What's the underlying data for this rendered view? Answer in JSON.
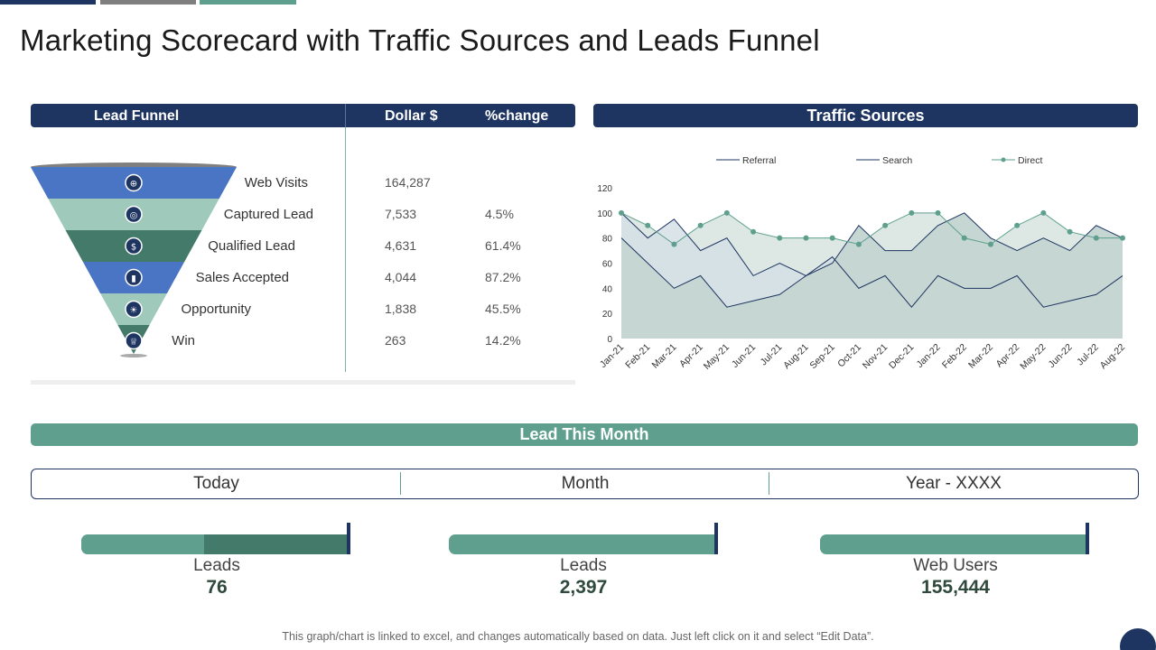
{
  "page_title": "Marketing Scorecard with Traffic Sources and Leads Funnel",
  "colors": {
    "navy": "#1e3461",
    "teal": "#5ea08d",
    "dark_teal": "#447a6a",
    "blue": "#4a74c4",
    "light_teal": "#9ec9bb"
  },
  "funnel": {
    "headers": {
      "stage": "Lead Funnel",
      "dollar": "Dollar $",
      "change": "%change"
    },
    "stages": [
      {
        "label": "Web Visits",
        "dollar": "164,287",
        "change": "",
        "icon": "globe-icon",
        "color": "#4a74c4"
      },
      {
        "label": "Captured Lead",
        "dollar": "7,533",
        "change": "4.5%",
        "icon": "target-icon",
        "color": "#9ec9bb"
      },
      {
        "label": "Qualified Lead",
        "dollar": "4,631",
        "change": "61.4%",
        "icon": "money-hand-icon",
        "color": "#447a6a"
      },
      {
        "label": "Sales Accepted",
        "dollar": "4,044",
        "change": "87.2%",
        "icon": "bar-chart-icon",
        "color": "#4a74c4"
      },
      {
        "label": "Opportunity",
        "dollar": "1,838",
        "change": "45.5%",
        "icon": "lightbulb-icon",
        "color": "#9ec9bb"
      },
      {
        "label": "Win",
        "dollar": "263",
        "change": "14.2%",
        "icon": "trophy-icon",
        "color": "#447a6a"
      }
    ]
  },
  "traffic": {
    "header": "Traffic Sources"
  },
  "chart_data": {
    "type": "area",
    "title": "Traffic Sources",
    "categories": [
      "Jan-21",
      "Feb-21",
      "Mar-21",
      "Apr-21",
      "May-21",
      "Jun-21",
      "Jul-21",
      "Aug-21",
      "Sep-21",
      "Oct-21",
      "Nov-21",
      "Dec-21",
      "Jan-22",
      "Feb-22",
      "Mar-22",
      "Apr-22",
      "May-22",
      "Jun-22",
      "Jul-22",
      "Aug-22"
    ],
    "ylim": [
      0,
      120
    ],
    "yticks": [
      0,
      20,
      40,
      60,
      80,
      100,
      120
    ],
    "legend_position": "top",
    "series": [
      {
        "name": "Referral",
        "values": [
          80,
          60,
          40,
          50,
          25,
          30,
          35,
          50,
          60,
          90,
          70,
          70,
          90,
          100,
          80,
          70,
          80,
          70,
          90,
          80
        ],
        "color": "#1e3461"
      },
      {
        "name": "Search",
        "values": [
          100,
          80,
          95,
          70,
          80,
          50,
          60,
          50,
          65,
          40,
          50,
          25,
          50,
          40,
          40,
          50,
          25,
          30,
          35,
          50
        ],
        "color": "#1e3461"
      },
      {
        "name": "Direct",
        "values": [
          100,
          90,
          75,
          90,
          100,
          85,
          80,
          80,
          80,
          75,
          90,
          100,
          100,
          80,
          75,
          90,
          100,
          85,
          80,
          80
        ],
        "color": "#5ea08d"
      }
    ]
  },
  "lead_month": {
    "title": "Lead This Month",
    "tabs": [
      "Today",
      "Month",
      "Year - XXXX"
    ],
    "metrics": [
      {
        "label": "Leads",
        "value": "76",
        "progress": 0.46
      },
      {
        "label": "Leads",
        "value": "2,397",
        "progress": 1.0
      },
      {
        "label": "Web Users",
        "value": "155,444",
        "progress": 1.0
      }
    ]
  },
  "footnote": "This graph/chart is linked to excel, and changes automatically based on data. Just left click on it and select “Edit Data”."
}
